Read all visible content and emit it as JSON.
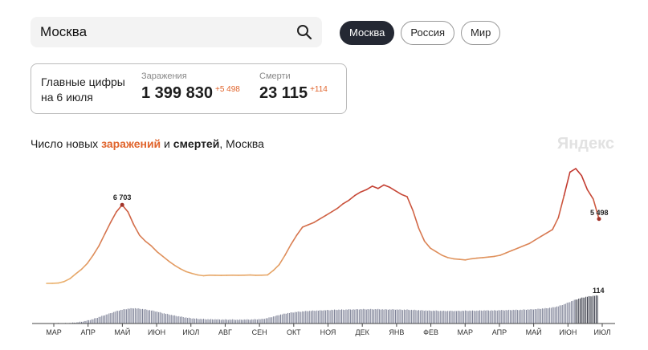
{
  "search": {
    "value": "Москва"
  },
  "regions": [
    {
      "label": "Москва",
      "active": true
    },
    {
      "label": "Россия",
      "active": false
    },
    {
      "label": "Мир",
      "active": false
    }
  ],
  "summary": {
    "label_line1": "Главные цифры",
    "label_line2": "на 6 июля",
    "infections_caption": "Заражения",
    "infections_value": "1 399 830",
    "infections_delta": "+5 498",
    "deaths_caption": "Смерти",
    "deaths_value": "23 115",
    "deaths_delta": "+114"
  },
  "chart_title": {
    "prefix": "Число новых ",
    "infections": "заражений",
    "middle": " и ",
    "deaths": "смертей",
    "suffix": ", Москва"
  },
  "brand": "Яндекс",
  "colors": {
    "accent": "#e0642c",
    "low": "#eab16d",
    "high": "#c1372e",
    "deaths_bar": "#7d8196"
  },
  "chart_data": {
    "type": "line",
    "x_ticks": [
      "МАР",
      "АПР",
      "МАЙ",
      "ИЮН",
      "ИЮЛ",
      "АВГ",
      "СЕН",
      "ОКТ",
      "НОЯ",
      "ДЕК",
      "ЯНВ",
      "ФЕВ",
      "МАР",
      "АПР",
      "МАЙ",
      "ИЮН",
      "ИЮЛ"
    ],
    "infections": {
      "name": "заражений",
      "values": [
        0,
        10,
        30,
        150,
        400,
        800,
        1200,
        1700,
        2400,
        3200,
        4200,
        5200,
        6100,
        6703,
        6100,
        5000,
        4100,
        3600,
        3200,
        2700,
        2300,
        1900,
        1550,
        1250,
        1000,
        850,
        720,
        650,
        700,
        690,
        680,
        690,
        700,
        690,
        700,
        710,
        690,
        700,
        720,
        1100,
        1600,
        2400,
        3300,
        4100,
        4800,
        5000,
        5200,
        5500,
        5800,
        6100,
        6400,
        6800,
        7100,
        7500,
        7800,
        8000,
        8300,
        8100,
        8400,
        8200,
        7900,
        7600,
        7400,
        6200,
        4700,
        3600,
        3000,
        2700,
        2400,
        2200,
        2100,
        2050,
        2000,
        2100,
        2150,
        2200,
        2250,
        2300,
        2400,
        2600,
        2800,
        3000,
        3200,
        3400,
        3700,
        4000,
        4300,
        4600,
        5600,
        7500,
        9500,
        9800,
        9200,
        8000,
        7200,
        5498
      ],
      "peak_label": "6 703",
      "last_label": "5 498"
    },
    "deaths": {
      "name": "смертей",
      "values": [
        0,
        0,
        1,
        1,
        2,
        4,
        7,
        12,
        18,
        26,
        34,
        42,
        50,
        56,
        60,
        62,
        60,
        57,
        53,
        48,
        42,
        37,
        32,
        28,
        24,
        21,
        19,
        18,
        17,
        17,
        16,
        16,
        16,
        15,
        16,
        16,
        17,
        18,
        22,
        28,
        35,
        40,
        44,
        47,
        49,
        51,
        52,
        53,
        54,
        55,
        56,
        56,
        57,
        57,
        58,
        58,
        58,
        58,
        57,
        57,
        57,
        56,
        56,
        55,
        54,
        53,
        52,
        52,
        51,
        51,
        51,
        51,
        52,
        52,
        52,
        53,
        53,
        53,
        54,
        54,
        55,
        55,
        56,
        57,
        58,
        60,
        62,
        65,
        70,
        78,
        88,
        97,
        104,
        109,
        112,
        114
      ],
      "last_label": "114"
    }
  }
}
